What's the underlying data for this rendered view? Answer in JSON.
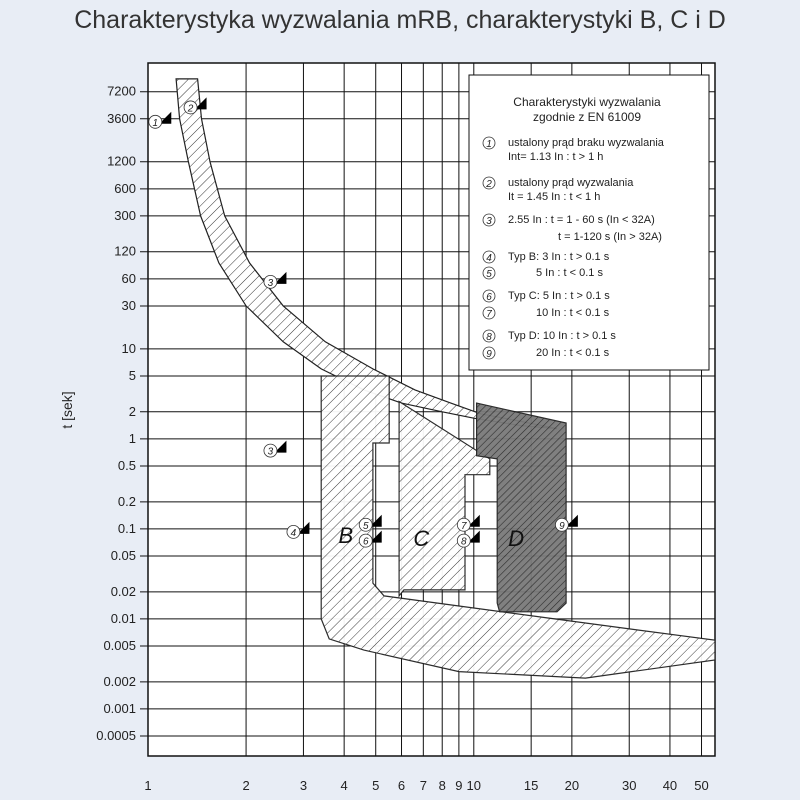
{
  "title": "Charakterystyka wyzwalania mRB, charakterystyki B, C i D",
  "chart_data": {
    "type": "line",
    "title": "Charakterystyka wyzwalania mRB, charakterystyki B, C i D",
    "xlabel": "",
    "ylabel": "t [sek]",
    "x_scale": "log",
    "y_scale": "log",
    "xlim": [
      1,
      55
    ],
    "ylim": [
      0.0003,
      15000
    ],
    "x_ticks": [
      {
        "v": 1,
        "label": "1"
      },
      {
        "v": 2,
        "label": "2"
      },
      {
        "v": 3,
        "label": "3"
      },
      {
        "v": 4,
        "label": "4"
      },
      {
        "v": 5,
        "label": "5"
      },
      {
        "v": 6,
        "label": "6"
      },
      {
        "v": 7,
        "label": "7"
      },
      {
        "v": 8,
        "label": "8"
      },
      {
        "v": 9,
        "label": "9"
      },
      {
        "v": 10,
        "label": "10"
      },
      {
        "v": 15,
        "label": "15"
      },
      {
        "v": 20,
        "label": "20"
      },
      {
        "v": 30,
        "label": "30"
      },
      {
        "v": 40,
        "label": "40"
      },
      {
        "v": 50,
        "label": "50"
      }
    ],
    "y_ticks": [
      {
        "v": 7200,
        "label": "7200"
      },
      {
        "v": 3600,
        "label": "3600"
      },
      {
        "v": 1200,
        "label": "1200"
      },
      {
        "v": 600,
        "label": "600"
      },
      {
        "v": 300,
        "label": "300"
      },
      {
        "v": 120,
        "label": "120"
      },
      {
        "v": 60,
        "label": "60"
      },
      {
        "v": 30,
        "label": "30"
      },
      {
        "v": 10,
        "label": "10"
      },
      {
        "v": 5,
        "label": "5"
      },
      {
        "v": 2,
        "label": "2"
      },
      {
        "v": 1,
        "label": "1"
      },
      {
        "v": 0.5,
        "label": "0.5"
      },
      {
        "v": 0.2,
        "label": "0.2"
      },
      {
        "v": 0.1,
        "label": "0.1"
      },
      {
        "v": 0.05,
        "label": "0.05"
      },
      {
        "v": 0.02,
        "label": "0.02"
      },
      {
        "v": 0.01,
        "label": "0.01"
      },
      {
        "v": 0.005,
        "label": "0.005"
      },
      {
        "v": 0.002,
        "label": "0.002"
      },
      {
        "v": 0.001,
        "label": "0.001"
      },
      {
        "v": 0.0005,
        "label": "0.0005"
      }
    ],
    "grid": true,
    "thermal_band": {
      "left": [
        [
          1.22,
          10000
        ],
        [
          1.25,
          3600
        ],
        [
          1.33,
          1200
        ],
        [
          1.45,
          300
        ],
        [
          1.65,
          90
        ],
        [
          2.0,
          30
        ],
        [
          2.6,
          12
        ],
        [
          3.4,
          6
        ],
        [
          4.6,
          3.5
        ],
        [
          6,
          2.5
        ],
        [
          8,
          2
        ],
        [
          10,
          1.7
        ],
        [
          14,
          1.4
        ],
        [
          18,
          1.3
        ]
      ],
      "right": [
        [
          1.42,
          10000
        ],
        [
          1.46,
          3600
        ],
        [
          1.55,
          1200
        ],
        [
          1.72,
          300
        ],
        [
          2.05,
          90
        ],
        [
          2.6,
          30
        ],
        [
          3.5,
          12
        ],
        [
          4.9,
          6
        ],
        [
          6.6,
          3.5
        ],
        [
          8.5,
          2.5
        ],
        [
          10.5,
          1.9
        ],
        [
          13.5,
          1.6
        ],
        [
          18,
          1.3
        ]
      ]
    },
    "series": [
      {
        "name": "B",
        "region": [
          [
            3.4,
            5
          ],
          [
            5.5,
            5
          ],
          [
            5.5,
            0.9
          ],
          [
            4.9,
            0.9
          ],
          [
            4.9,
            0.025
          ],
          [
            5.3,
            0.018
          ],
          [
            22,
            0.009
          ],
          [
            55,
            0.0058
          ],
          [
            55,
            0.0035
          ],
          [
            22,
            0.0022
          ],
          [
            9,
            0.0026
          ],
          [
            4.6,
            0.0045
          ],
          [
            3.6,
            0.006
          ],
          [
            3.4,
            0.01
          ]
        ],
        "fill": "hatch"
      },
      {
        "name": "C",
        "region": [
          [
            5.9,
            2.6
          ],
          [
            11.2,
            0.6
          ],
          [
            11.2,
            0.4
          ],
          [
            9.4,
            0.4
          ],
          [
            9.4,
            0.021
          ],
          [
            6.1,
            0.021
          ],
          [
            5.9,
            0.018
          ]
        ],
        "fill": "hatch"
      },
      {
        "name": "D",
        "region": [
          [
            10.2,
            2.5
          ],
          [
            19.2,
            1.5
          ],
          [
            19.2,
            0.015
          ],
          [
            18,
            0.012
          ],
          [
            12,
            0.012
          ],
          [
            11.8,
            0.015
          ],
          [
            11.8,
            0.6
          ],
          [
            10.2,
            0.65
          ]
        ],
        "fill": "dark-hatch"
      }
    ],
    "curve_labels": [
      {
        "text": "B",
        "x": 4.05,
        "y": 0.07
      },
      {
        "text": "C",
        "x": 6.9,
        "y": 0.065
      },
      {
        "text": "D",
        "x": 13.5,
        "y": 0.065
      }
    ],
    "markers": [
      {
        "n": "1",
        "x": 1.13,
        "y": 3600
      },
      {
        "n": "2",
        "x": 1.45,
        "y": 5200
      },
      {
        "n": "3",
        "x": 2.55,
        "y": 60
      },
      {
        "n": "3",
        "x": 2.55,
        "y": 0.8
      },
      {
        "n": "4",
        "x": 3,
        "y": 0.1
      },
      {
        "n": "5",
        "x": 5,
        "y": 0.12
      },
      {
        "n": "6",
        "x": 5,
        "y": 0.08
      },
      {
        "n": "7",
        "x": 10,
        "y": 0.12
      },
      {
        "n": "8",
        "x": 10,
        "y": 0.08
      },
      {
        "n": "9",
        "x": 20,
        "y": 0.12
      }
    ],
    "legend": {
      "placement": "top-right",
      "title1": "Charakterystyki wyzwalania",
      "title2": "zgodnie z EN 61009",
      "items": [
        {
          "n": "1",
          "lines": [
            "ustalony prąd braku wyzwalania",
            "Int= 1.13 In :  t > 1 h"
          ]
        },
        {
          "n": "2",
          "lines": [
            "ustalony prąd wyzwalania",
            "It = 1.45 In :  t < 1 h"
          ]
        },
        {
          "n": "3",
          "lines": [
            "2.55 In : t = 1 - 60 s (In < 32A)",
            "t = 1-120 s (In > 32A)"
          ]
        },
        {
          "n": "4",
          "lines": [
            "Typ B:  3 In  : t > 0.1 s"
          ]
        },
        {
          "n": "5",
          "lines": [
            "5 In  : t < 0.1 s"
          ]
        },
        {
          "n": "6",
          "lines": [
            "Typ C:  5 In  : t > 0.1 s"
          ]
        },
        {
          "n": "7",
          "lines": [
            "10 In  : t < 0.1 s"
          ]
        },
        {
          "n": "8",
          "lines": [
            "Typ D:  10 In  : t > 0.1 s"
          ]
        },
        {
          "n": "9",
          "lines": [
            "20 In  : t < 0.1 s"
          ]
        }
      ]
    }
  }
}
